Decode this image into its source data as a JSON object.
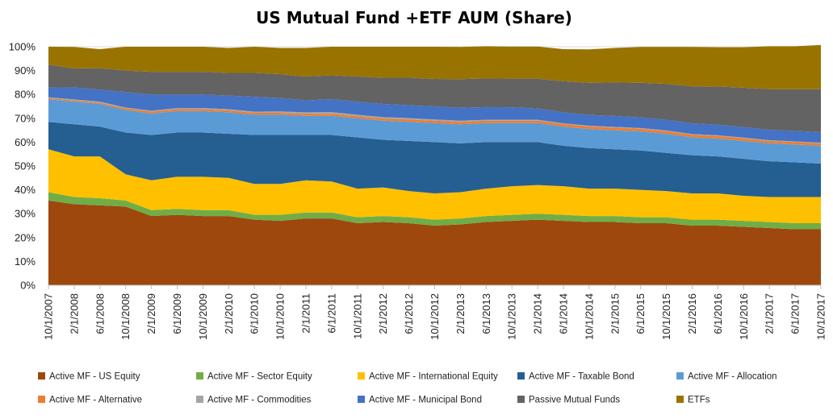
{
  "chart_data": {
    "type": "area",
    "stacked": true,
    "percent": true,
    "title": "US Mutual Fund +ETF AUM (Share)",
    "xlabel": "",
    "ylabel": "",
    "ylim": [
      0,
      100
    ],
    "yticks": [
      "0%",
      "10%",
      "20%",
      "30%",
      "40%",
      "50%",
      "60%",
      "70%",
      "80%",
      "90%",
      "100%"
    ],
    "grid": true,
    "legend": "bottom",
    "x": [
      "10/1/2007",
      "2/1/2008",
      "6/1/2008",
      "10/1/2008",
      "2/1/2009",
      "6/1/2009",
      "10/1/2009",
      "2/1/2010",
      "6/1/2010",
      "10/1/2010",
      "2/1/2011",
      "6/1/2011",
      "10/1/2011",
      "2/1/2012",
      "6/1/2012",
      "10/1/2012",
      "2/1/2013",
      "6/1/2013",
      "10/1/2013",
      "2/1/2014",
      "6/1/2014",
      "10/1/2014",
      "2/1/2015",
      "6/1/2015",
      "10/1/2015",
      "2/1/2016",
      "6/1/2016",
      "10/1/2016",
      "2/1/2017",
      "6/1/2017",
      "10/1/2017"
    ],
    "series": [
      {
        "name": "Active MF - US Equity",
        "color": "#9E480E",
        "values": [
          35.5,
          34,
          33.5,
          33,
          29,
          29.5,
          29,
          29,
          27.5,
          27,
          28,
          28,
          26,
          26.5,
          26,
          25,
          25.5,
          26.5,
          27,
          27.5,
          27,
          26.5,
          26.5,
          26,
          26,
          25,
          25,
          24.5,
          24,
          23.5,
          23.5
        ]
      },
      {
        "name": "Active MF - Sector Equity",
        "color": "#70AD47",
        "values": [
          3.5,
          3,
          3,
          2.5,
          2.5,
          2.5,
          2.5,
          2.5,
          2,
          2.5,
          2.5,
          2.5,
          2.5,
          2.5,
          2.5,
          2.5,
          2.5,
          2.5,
          2.5,
          2.5,
          2.5,
          2.5,
          2.5,
          2.5,
          2.5,
          2.5,
          2.5,
          2.5,
          2.5,
          2.5,
          2.5
        ]
      },
      {
        "name": "Active MF - International Equity",
        "color": "#FFC000",
        "values": [
          18,
          17,
          17.5,
          11,
          12.5,
          13.5,
          14,
          13.5,
          13,
          13,
          13.5,
          13,
          12,
          12,
          11,
          11,
          11,
          11.5,
          12,
          12,
          12,
          11.5,
          11.5,
          11.5,
          11,
          11,
          11,
          10.5,
          10.5,
          11,
          11
        ]
      },
      {
        "name": "Active MF - Taxable Bond",
        "color": "#255E91",
        "values": [
          11.5,
          13.5,
          12.5,
          17.5,
          19,
          18.5,
          18.5,
          18.5,
          20.5,
          20.5,
          19,
          19.5,
          21.5,
          20,
          21,
          21.5,
          20.5,
          19.5,
          18.5,
          18,
          17,
          17,
          16.5,
          16.5,
          16,
          16,
          15.5,
          15.5,
          15,
          14.5,
          14
        ]
      },
      {
        "name": "Active MF - Allocation",
        "color": "#5B9BD5",
        "values": [
          9.5,
          9.5,
          9.5,
          9.5,
          9,
          9,
          9,
          9,
          8.5,
          8.5,
          8,
          8,
          8,
          8,
          8,
          8,
          8,
          8,
          8,
          8,
          8,
          8,
          8,
          8,
          8,
          7.5,
          7.5,
          7.5,
          7.5,
          7.5,
          7.5
        ]
      },
      {
        "name": "Active MF - Alternative",
        "color": "#ED7D31",
        "values": [
          0.5,
          0.5,
          0.5,
          0.7,
          0.8,
          0.8,
          0.8,
          0.8,
          0.8,
          0.8,
          0.8,
          0.9,
          0.9,
          0.9,
          1,
          1,
          1,
          1,
          1,
          1,
          1.1,
          1.1,
          1.1,
          1.1,
          1.1,
          1.1,
          1.1,
          1.1,
          1,
          1,
          1
        ]
      },
      {
        "name": "Active MF - Commodities",
        "color": "#A5A5A5",
        "values": [
          0.3,
          0.4,
          0.5,
          0.3,
          0.4,
          0.5,
          0.5,
          0.5,
          0.5,
          0.6,
          0.7,
          0.7,
          0.6,
          0.6,
          0.6,
          0.5,
          0.5,
          0.4,
          0.4,
          0.4,
          0.3,
          0.3,
          0.3,
          0.3,
          0.3,
          0.3,
          0.3,
          0.3,
          0.3,
          0.3,
          0.3
        ]
      },
      {
        "name": "Active MF - Municipal Bond",
        "color": "#4472C4",
        "values": [
          4.2,
          5,
          5,
          6.5,
          6.8,
          5.7,
          5.7,
          5.7,
          6.2,
          5.6,
          5,
          5.4,
          5.5,
          5.5,
          5.4,
          5.5,
          5.4,
          5.3,
          5.2,
          4.7,
          4.6,
          4.5,
          4.6,
          4.5,
          4.5,
          4.5,
          4.4,
          4.4,
          4.4,
          4.4,
          4.4
        ]
      },
      {
        "name": "Passive Mutual Funds",
        "color": "#636363",
        "values": [
          9.5,
          8,
          9,
          9,
          9.5,
          9.5,
          9.5,
          9.5,
          10,
          10,
          10,
          10,
          10.5,
          11,
          11.5,
          11.5,
          12,
          12,
          12,
          12.5,
          13,
          13.5,
          14,
          14.5,
          15,
          15.5,
          16,
          16.5,
          17,
          17.5,
          18
        ]
      },
      {
        "name": "ETFs",
        "color": "#997300",
        "values": [
          7.5,
          9,
          8,
          10,
          10.5,
          10.5,
          10.5,
          10.5,
          11,
          11,
          12,
          12,
          12.5,
          13,
          13,
          13.5,
          13.5,
          13.5,
          13.5,
          13.5,
          13.5,
          14,
          14.5,
          15,
          15.5,
          16.5,
          16.5,
          17,
          18,
          18,
          18.5
        ]
      }
    ]
  }
}
